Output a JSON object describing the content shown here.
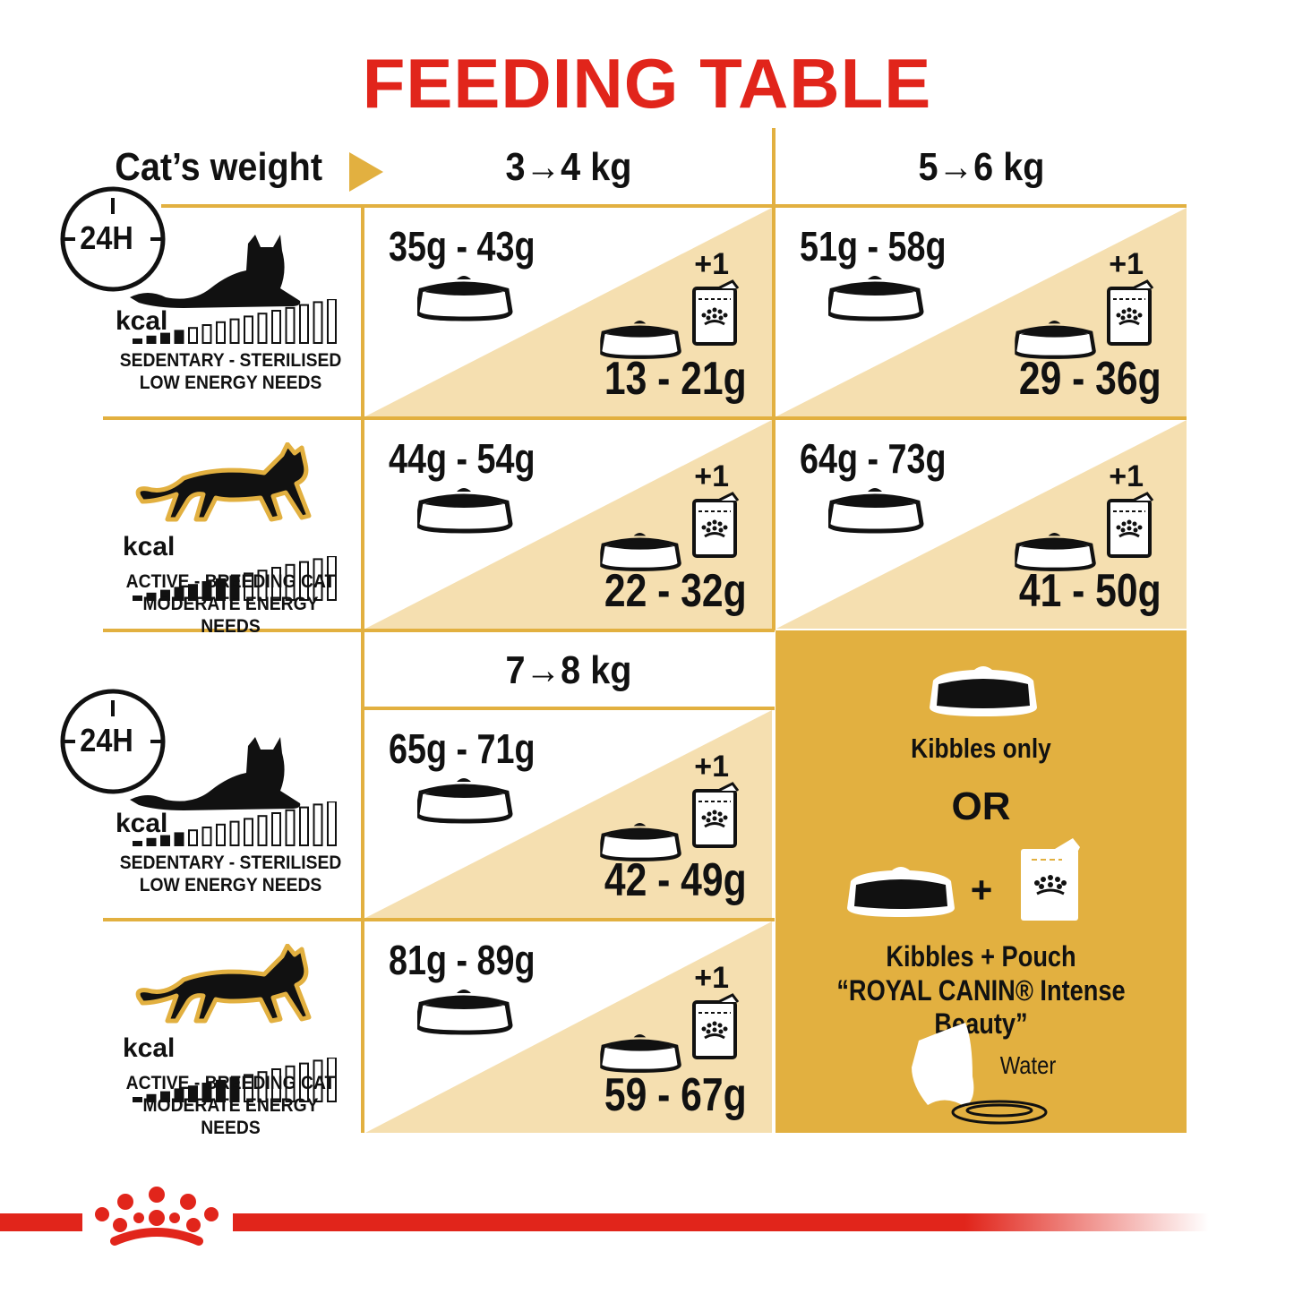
{
  "title": "FEEDING TABLE",
  "header": {
    "weight_label": "Cat’s weight",
    "col1": "3→4 kg",
    "col2": "5→6 kg",
    "col3": "7→8 kg"
  },
  "clock_label": "24H",
  "kcal_label": "kcal",
  "profiles": {
    "sedentary": {
      "line1": "SEDENTARY - STERILISED",
      "line2": "LOW ENERGY NEEDS",
      "energy_level": 4
    },
    "active": {
      "line1": "ACTIVE - BREEDING CAT",
      "line2": "MODERATE ENERGY NEEDS",
      "energy_level": 8
    }
  },
  "plus_one": "+1",
  "cells": [
    {
      "kibbles": "35g - 43g",
      "mixed": "13 - 21g"
    },
    {
      "kibbles": "51g - 58g",
      "mixed": "29 - 36g"
    },
    {
      "kibbles": "44g - 54g",
      "mixed": "22 - 32g"
    },
    {
      "kibbles": "64g - 73g",
      "mixed": "41 - 50g"
    },
    {
      "kibbles": "65g - 71g",
      "mixed": "42 - 49g"
    },
    {
      "kibbles": "81g - 89g",
      "mixed": "59 - 67g"
    }
  ],
  "legend": {
    "kibbles_only": "Kibbles only",
    "or": "OR",
    "plus": "+",
    "kibbles_pouch": "Kibbles + Pouch",
    "product": "“ROYAL CANIN® Intense Beauty”",
    "water": "Water"
  },
  "colors": {
    "red": "#e1251b",
    "gold": "#e2b040",
    "light_gold": "#f5dfb0"
  }
}
